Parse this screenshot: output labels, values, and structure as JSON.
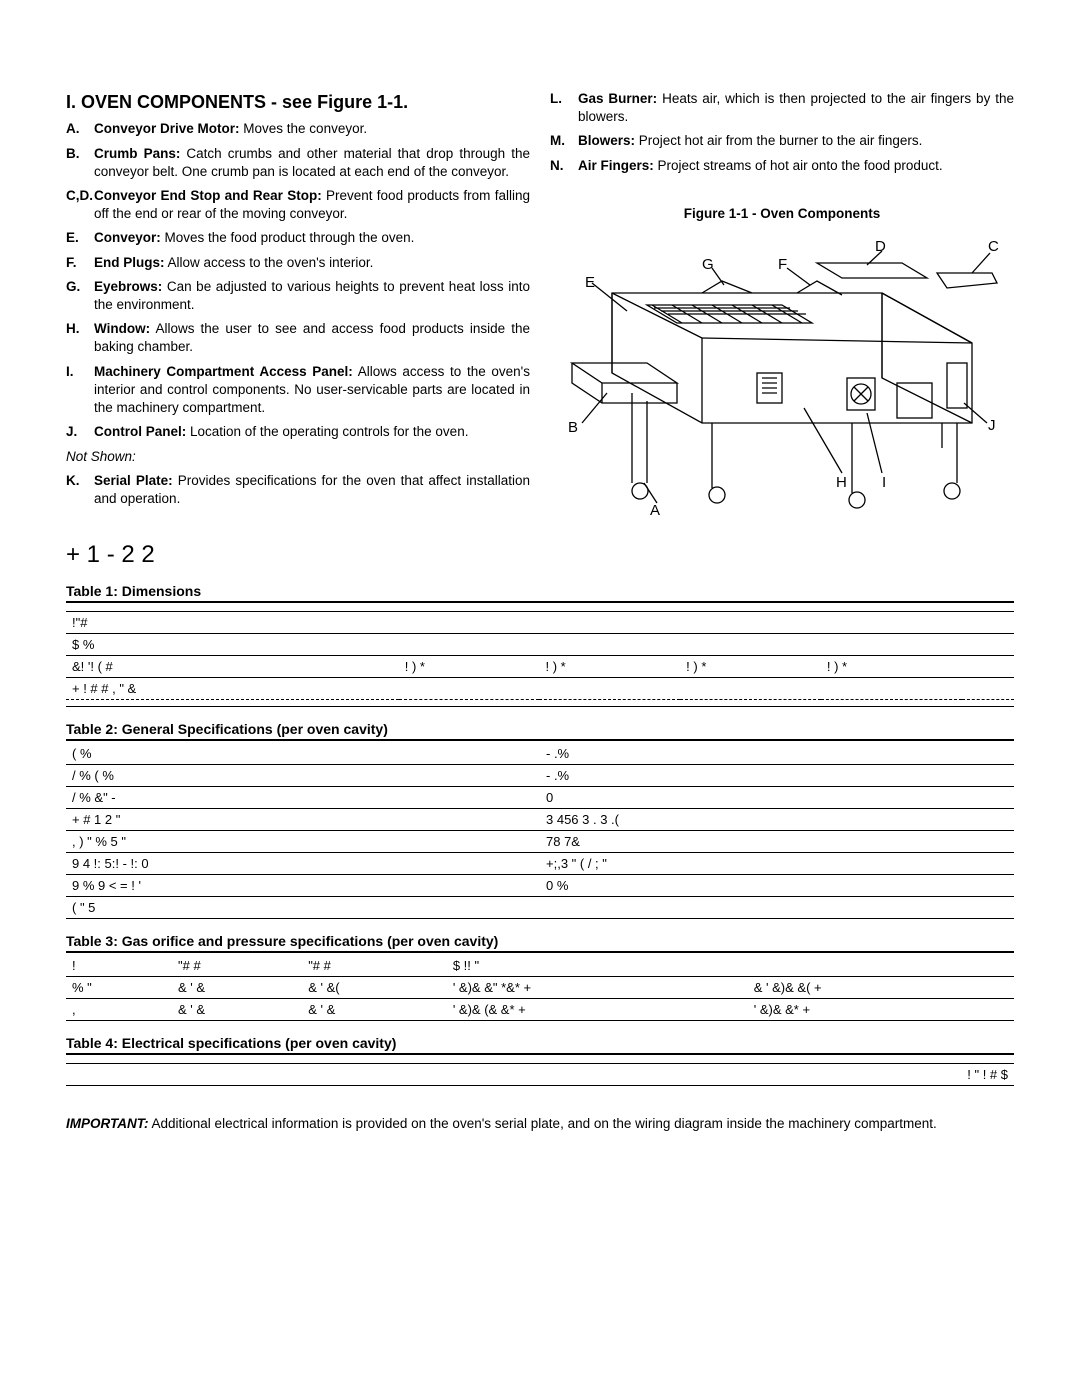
{
  "section": {
    "number": "I.",
    "title": "OVEN COMPONENTS - see Figure 1-1."
  },
  "components_left": [
    {
      "letter": "A.",
      "label": "Conveyor Drive Motor:",
      "text": "Moves the conveyor."
    },
    {
      "letter": "B.",
      "label": "Crumb Pans:",
      "text": "Catch crumbs and other material that drop through the conveyor belt. One crumb pan is located at each end of the conveyor."
    },
    {
      "letter": "C,D.",
      "label": "Conveyor End Stop and Rear Stop:",
      "text": "Prevent food products from falling off the end or rear of the moving conveyor."
    },
    {
      "letter": "E.",
      "label": "Conveyor:",
      "text": "Moves the food product through the oven."
    },
    {
      "letter": "F.",
      "label": "End Plugs:",
      "text": "Allow access to the oven's interior."
    },
    {
      "letter": "G.",
      "label": "Eyebrows:",
      "text": "Can be adjusted to various heights to prevent heat loss into the environment."
    },
    {
      "letter": "H.",
      "label": "Window:",
      "text": "Allows the user to see and access food products inside the baking chamber."
    },
    {
      "letter": "I.",
      "label": "Machinery Compartment Access Panel:",
      "text": "Allows access to the oven's interior and control components. No user-servicable parts are located in the machinery compartment."
    },
    {
      "letter": "J.",
      "label": "Control Panel:",
      "text": "Location of the operating controls for the oven."
    }
  ],
  "not_shown_label": "Not Shown:",
  "components_left_ns": [
    {
      "letter": "K.",
      "label": "Serial Plate:",
      "text": "Provides specifications for the oven that affect installation and operation."
    }
  ],
  "components_right": [
    {
      "letter": "L.",
      "label": "Gas Burner:",
      "text": "Heats air, which is then projected to the air fingers by the blowers."
    },
    {
      "letter": "M.",
      "label": "Blowers:",
      "text": "Project hot air from the burner to the air fingers."
    },
    {
      "letter": "N.",
      "label": "Air Fingers:",
      "text": "Project streams of hot air onto the food product."
    }
  ],
  "figure_caption": "Figure 1-1 - Oven Components",
  "diagram_labels": {
    "A": "A",
    "B": "B",
    "C": "C",
    "D": "D",
    "E": "E",
    "F": "F",
    "G": "G",
    "H": "H",
    "I": "I",
    "J": "J"
  },
  "spec_heading": "+   1   - 2  2",
  "table1": {
    "title": "Table 1:  Dimensions",
    "rows": [
      [
        " ",
        " ",
        " ",
        " ",
        " ",
        " "
      ],
      [
        "!\"#",
        " ",
        " ",
        " ",
        " ",
        " "
      ],
      [
        "$  %",
        " ",
        " ",
        " ",
        " ",
        " "
      ],
      [
        "&!  '! ( #",
        "!  ) *",
        "!  ) *",
        "!  ) *",
        "!  ) *",
        " "
      ],
      [
        "+ !  # # ,   \" &",
        " ",
        " ",
        " ",
        " ",
        " "
      ],
      [
        " ",
        " ",
        " ",
        " ",
        " ",
        " "
      ]
    ]
  },
  "table2": {
    "title": "Table 2:  General Specifications (per oven cavity)",
    "rows": [
      [
        "( %",
        "-      .%"
      ],
      [
        "/    % ( %",
        "-    .%"
      ],
      [
        "/    % &\" -",
        "0"
      ],
      [
        "+  # 1  2 \"",
        "3  456  3  .  3   .("
      ],
      [
        ", ) \"      % 5    \"",
        "78   7&"
      ],
      [
        "9   4 !:                                  5:! - !:        0",
        "+;,3    \"       (   /    ;  \""
      ],
      [
        "9  % 9  <  = ! '",
        "0                                %"
      ],
      [
        "( \" 5",
        " "
      ]
    ]
  },
  "table3": {
    "title": "Table 3:  Gas orifice and pressure specifications (per oven cavity)",
    "header": [
      "!",
      "\"# #",
      "\"# #",
      "$ !!    \"",
      " "
    ],
    "rows": [
      [
        "% \"",
        "&  '  &",
        "&  '  &(",
        "' &)&   &\"  *&* +",
        "& '  &)&  &( +"
      ],
      [
        ",",
        "&  '  &",
        "&  '  &",
        "' &)&  (&  &* +",
        "' &)&  &* +"
      ]
    ]
  },
  "table4": {
    "title": "Table 4:  Electrical specifications (per oven cavity)",
    "rows": [
      [
        " ",
        " "
      ],
      [
        " ",
        "!   \" !   # $"
      ]
    ]
  },
  "footer": {
    "important": "IMPORTANT:",
    "text": "Additional electrical information is provided on the oven's serial plate, and on the wiring diagram inside the machinery compartment."
  }
}
